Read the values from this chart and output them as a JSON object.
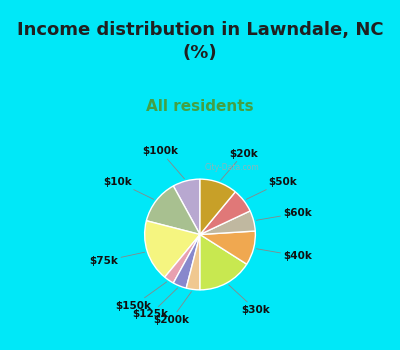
{
  "title": "Income distribution in Lawndale, NC\n(%)",
  "subtitle": "All residents",
  "labels": [
    "$100k",
    "$10k",
    "$75k",
    "$150k",
    "$125k",
    "$200k",
    "$30k",
    "$40k",
    "$60k",
    "$50k",
    "$20k"
  ],
  "sizes": [
    8,
    13,
    18,
    3,
    4,
    4,
    16,
    10,
    6,
    7,
    11
  ],
  "colors": [
    "#b8a8d0",
    "#a8c090",
    "#f5f580",
    "#e8a0b0",
    "#8888cc",
    "#f0c890",
    "#c8e850",
    "#f0a850",
    "#c0b8a0",
    "#e07878",
    "#c8a028"
  ],
  "bg_cyan": "#00e8f8",
  "chart_bg": "#d8ede0",
  "title_color": "#202020",
  "subtitle_color": "#44a044",
  "title_fontsize": 13,
  "subtitle_fontsize": 11,
  "label_fontsize": 7.5,
  "watermark": "City-Data.com"
}
